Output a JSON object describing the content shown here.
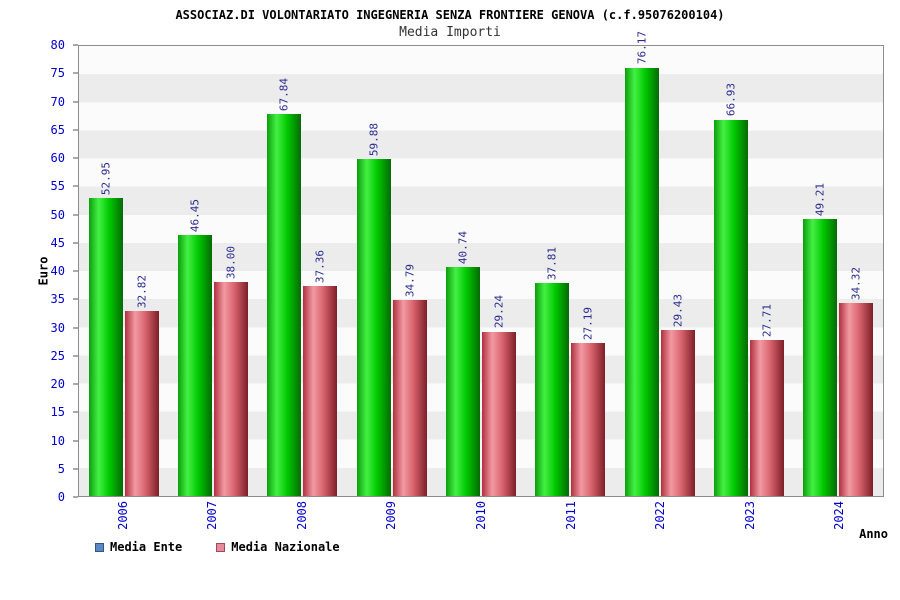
{
  "chart_data": {
    "type": "bar",
    "title": "ASSOCIAZ.DI VOLONTARIATO INGEGNERIA SENZA FRONTIERE GENOVA (c.f.95076200104)",
    "subtitle": "Media Importi",
    "xlabel": "Anno",
    "ylabel": "Euro",
    "ylim": [
      0,
      80
    ],
    "y_tick_step": 5,
    "grid": "banded-rows",
    "legend_position": "bottom-left",
    "bar_value_labels": "rotated-90",
    "x_tick_rotation": 90,
    "categories": [
      "2006",
      "2007",
      "2008",
      "2009",
      "2010",
      "2011",
      "2022",
      "2023",
      "2024"
    ],
    "series": [
      {
        "name": "Media Ente",
        "color": "#00c800",
        "values": [
          52.95,
          46.45,
          67.84,
          59.88,
          40.74,
          37.81,
          76.17,
          66.93,
          49.21
        ]
      },
      {
        "name": "Media Nazionale",
        "color": "#d8636e",
        "values": [
          32.82,
          38.0,
          37.36,
          34.79,
          29.24,
          27.19,
          29.43,
          27.71,
          34.32
        ]
      }
    ]
  },
  "legend": [
    {
      "label": "Media Ente",
      "color": "#5b87c5",
      "border": "#31557f"
    },
    {
      "label": "Media Nazionale",
      "color": "#e78a9b",
      "border": "#a04a58"
    }
  ]
}
